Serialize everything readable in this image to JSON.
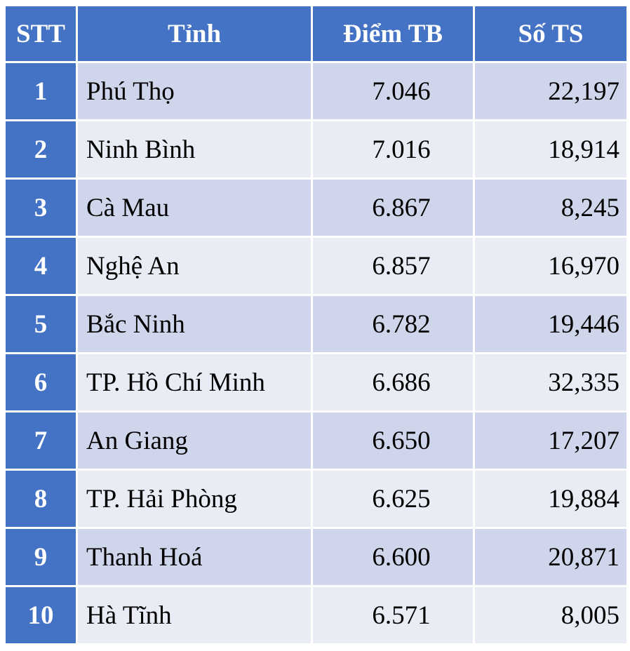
{
  "chart_data": {
    "type": "table",
    "columns": [
      "STT",
      "Tỉnh",
      "Điểm TB",
      "Số TS"
    ],
    "rows": [
      {
        "stt": "1",
        "province": "Phú Thọ",
        "score": "7.046",
        "count": "22,197"
      },
      {
        "stt": "2",
        "province": "Ninh Bình",
        "score": "7.016",
        "count": "18,914"
      },
      {
        "stt": "3",
        "province": "Cà Mau",
        "score": "6.867",
        "count": "8,245"
      },
      {
        "stt": "4",
        "province": "Nghệ An",
        "score": "6.857",
        "count": "16,970"
      },
      {
        "stt": "5",
        "province": "Bắc Ninh",
        "score": "6.782",
        "count": "19,446"
      },
      {
        "stt": "6",
        "province": "TP. Hồ Chí Minh",
        "score": "6.686",
        "count": "32,335"
      },
      {
        "stt": "7",
        "province": "An Giang",
        "score": "6.650",
        "count": "17,207"
      },
      {
        "stt": "8",
        "province": "TP. Hải Phòng",
        "score": "6.625",
        "count": "19,884"
      },
      {
        "stt": "9",
        "province": "Thanh Hoá",
        "score": "6.600",
        "count": "20,871"
      },
      {
        "stt": "10",
        "province": "Hà Tĩnh",
        "score": "6.571",
        "count": "8,005"
      }
    ],
    "colors": {
      "header": "#4472c4",
      "row_odd": "#cfd5ea",
      "row_even": "#e9ebf5"
    }
  }
}
